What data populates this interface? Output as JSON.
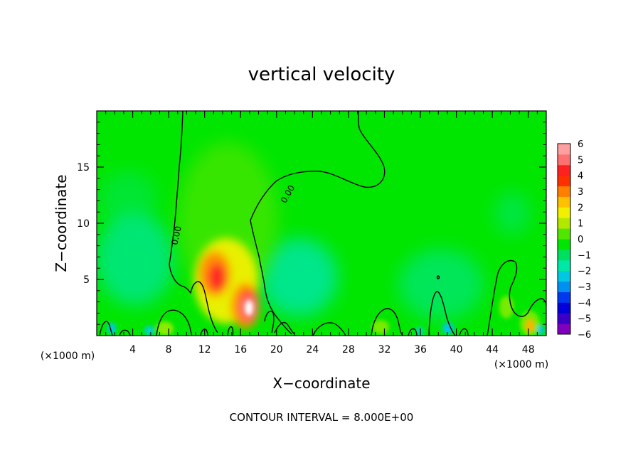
{
  "chart_data": {
    "type": "heatmap",
    "title": "vertical velocity",
    "xlabel": "X−coordinate",
    "ylabel": "Z−coordinate",
    "x_unit": "(×1000 m)",
    "y_unit": "(×1000 m)",
    "xlim": [
      0,
      50
    ],
    "ylim": [
      0,
      20
    ],
    "x_ticks": [
      "4",
      "8",
      "12",
      "16",
      "20",
      "24",
      "28",
      "32",
      "36",
      "40",
      "44",
      "48"
    ],
    "y_ticks": [
      "5",
      "10",
      "15"
    ],
    "colorbar": {
      "ticks": [
        "6",
        "5",
        "4",
        "3",
        "2",
        "1",
        "0",
        "−1",
        "−2",
        "−3",
        "−4",
        "−5",
        "−6"
      ],
      "range": [
        -6,
        6
      ],
      "colors": [
        "#7f00bf",
        "#3a00c8",
        "#0000d8",
        "#0038f0",
        "#0090f0",
        "#00c8e0",
        "#00e8a8",
        "#00e060",
        "#00e600",
        "#50e600",
        "#b0e800",
        "#f0f000",
        "#ffc000",
        "#ff8000",
        "#ff3000",
        "#ff2020",
        "#ff7070",
        "#ffa0a0"
      ]
    },
    "contour_label": "0.00",
    "features": [
      {
        "kind": "updraft",
        "x": 17,
        "z": 2.5,
        "value": 6
      },
      {
        "kind": "updraft",
        "x": 13,
        "z": 5,
        "value": 4
      },
      {
        "kind": "updraft",
        "x": 48,
        "z": 0.8,
        "value": 4
      },
      {
        "kind": "downdraft",
        "x": 5,
        "z": 7,
        "value": -1.5
      },
      {
        "kind": "downdraft",
        "x": 22,
        "z": 5,
        "value": -2
      },
      {
        "kind": "downdraft",
        "x": 40,
        "z": 5,
        "value": -1.5
      }
    ],
    "grid": false
  },
  "footer": {
    "contour_interval": "CONTOUR INTERVAL = 8.000E+00"
  }
}
